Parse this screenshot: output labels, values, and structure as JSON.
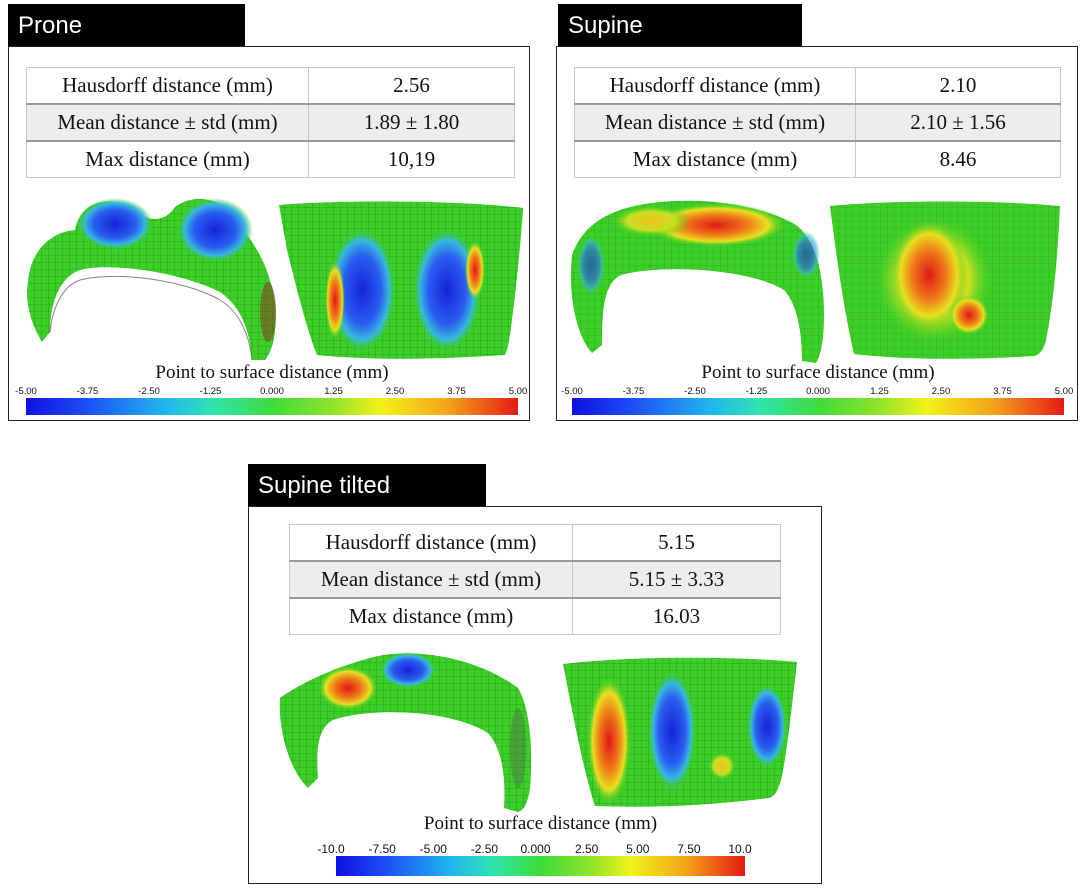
{
  "colors": {
    "header_bg": "#000000",
    "header_text": "#ffffff",
    "row_shade": "#ededed",
    "mesh_green": "#3ccf28",
    "mesh_blue": "#1f3fe0",
    "mesh_red": "#e01818"
  },
  "panels": [
    {
      "id": "prone",
      "title": "Prone",
      "metrics": [
        {
          "label": "Hausdorff distance (mm)",
          "value": "2.56"
        },
        {
          "label": "Mean distance ±  std (mm)",
          "value": "1.89 ± 1.80"
        },
        {
          "label": "Max distance (mm)",
          "value": "10,19"
        }
      ],
      "colorbar": {
        "title": "Point to surface distance (mm)",
        "ticks": [
          "-5.00",
          "-3.75",
          "-2.50",
          "-1.25",
          "0.000",
          "1.25",
          "2.50",
          "3.75",
          "5.00"
        ]
      }
    },
    {
      "id": "supine",
      "title": "Supine",
      "metrics": [
        {
          "label": "Hausdorff distance (mm)",
          "value": "2.10"
        },
        {
          "label": "Mean distance ± std (mm)",
          "value": "2.10 ± 1.56"
        },
        {
          "label": "Max distance (mm)",
          "value": "8.46"
        }
      ],
      "colorbar": {
        "title": "Point to surface distance (mm)",
        "ticks": [
          "-5.00",
          "-3.75",
          "-2.50",
          "-1.25",
          "0.000",
          "1.25",
          "2.50",
          "3.75",
          "5.00"
        ]
      }
    },
    {
      "id": "supine-tilted",
      "title": "Supine tilted",
      "metrics": [
        {
          "label": "Hausdorff distance (mm)",
          "value": "5.15"
        },
        {
          "label": "Mean distance ±  std (mm)",
          "value": "5.15 ± 3.33"
        },
        {
          "label": "Max distance (mm)",
          "value": "16.03"
        }
      ],
      "colorbar": {
        "title": "Point to surface distance (mm)",
        "ticks": [
          "-10.0",
          "-7.50",
          "-5.00",
          "-2.50",
          "0.000",
          "2.50",
          "5.00",
          "7.50",
          "10.0"
        ]
      }
    }
  ]
}
